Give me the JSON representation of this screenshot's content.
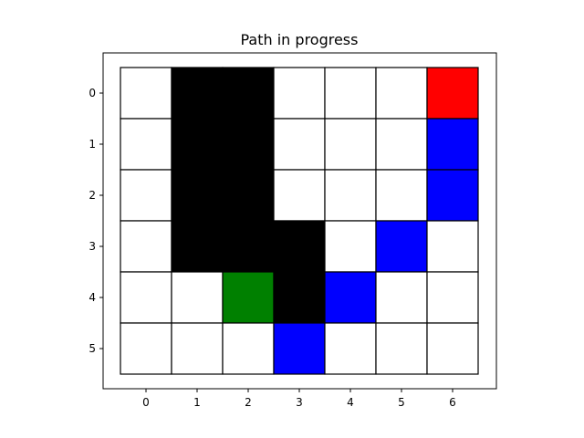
{
  "chart_data": {
    "type": "heatmap",
    "title": "Path in progress",
    "xlabel": "",
    "ylabel": "",
    "x_ticks": [
      "0",
      "1",
      "2",
      "3",
      "4",
      "5",
      "6"
    ],
    "y_ticks": [
      "0",
      "1",
      "2",
      "3",
      "4",
      "5"
    ],
    "rows": 6,
    "cols": 7,
    "grid": [
      [
        "empty",
        "wall",
        "wall",
        "empty",
        "empty",
        "empty",
        "current"
      ],
      [
        "empty",
        "wall",
        "wall",
        "empty",
        "empty",
        "empty",
        "path"
      ],
      [
        "empty",
        "wall",
        "wall",
        "empty",
        "empty",
        "empty",
        "path"
      ],
      [
        "empty",
        "wall",
        "wall",
        "wall",
        "empty",
        "path",
        "empty"
      ],
      [
        "empty",
        "empty",
        "start",
        "wall",
        "path",
        "empty",
        "empty"
      ],
      [
        "empty",
        "empty",
        "empty",
        "path",
        "empty",
        "empty",
        "empty"
      ]
    ],
    "colors": {
      "empty": "#ffffff",
      "wall": "#000000",
      "path": "#0000ff",
      "start": "#008000",
      "current": "#ff0000"
    }
  }
}
